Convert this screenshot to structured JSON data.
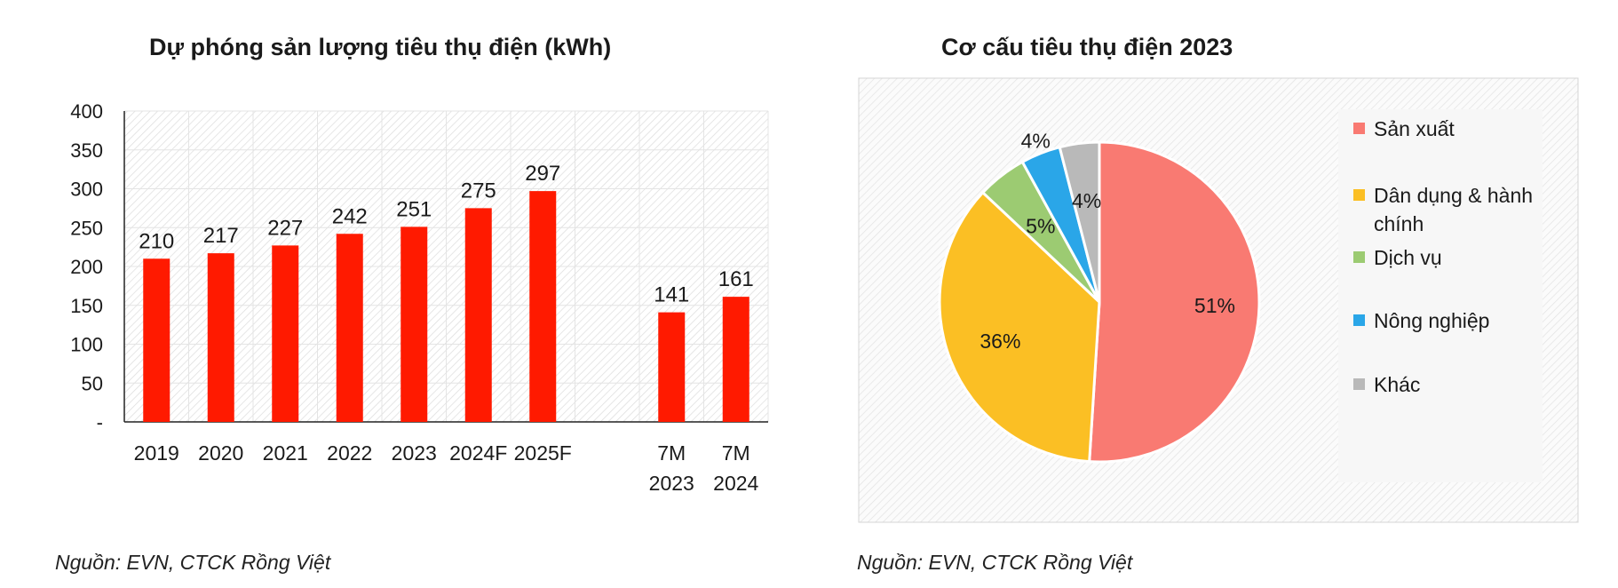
{
  "bar_panel": {
    "title": "Dự phóng sản lượng tiêu thụ điện (kWh)",
    "source": "Nguồn: EVN, CTCK Rồng Việt"
  },
  "pie_panel": {
    "title": "Cơ cấu tiêu thụ điện 2023",
    "source": "Nguồn: EVN, CTCK Rồng Việt"
  },
  "chart_data": [
    {
      "type": "bar",
      "title": "Dự phóng sản lượng tiêu thụ điện (kWh)",
      "xlabel": "",
      "ylabel": "",
      "ylim": [
        0,
        400
      ],
      "ytick_labels": [
        "-",
        "50",
        "100",
        "150",
        "200",
        "250",
        "300",
        "350",
        "400"
      ],
      "categories": [
        [
          "2019"
        ],
        [
          "2020"
        ],
        [
          "2021"
        ],
        [
          "2022"
        ],
        [
          "2023"
        ],
        [
          "2024F"
        ],
        [
          "2025F"
        ],
        [
          ""
        ],
        [
          "7M",
          "2023"
        ],
        [
          "7M",
          "2024"
        ]
      ],
      "values": [
        210,
        217,
        227,
        242,
        251,
        275,
        297,
        null,
        141,
        161
      ],
      "data_labels": [
        "210",
        "217",
        "227",
        "242",
        "251",
        "275",
        "297",
        "",
        "141",
        "161"
      ],
      "bar_color": "#ff1a00",
      "grid": true
    },
    {
      "type": "pie",
      "title": "Cơ cấu tiêu thụ điện 2023",
      "labels": [
        "Sản xuất",
        "Dân dụng & hành chính",
        "Dịch vụ",
        "Nông nghiệp",
        "Khác"
      ],
      "legend_lines": [
        [
          "Sản xuất"
        ],
        [
          "Dân dụng & hành",
          "chính"
        ],
        [
          "Dịch vụ"
        ],
        [
          "Nông nghiệp"
        ],
        [
          "Khác"
        ]
      ],
      "values": [
        51,
        36,
        5,
        4,
        4
      ],
      "data_labels": [
        "51%",
        "36%",
        "5%",
        "4%",
        "4%"
      ],
      "colors": [
        "#f97a72",
        "#fbbf24",
        "#9ccb72",
        "#2aa6e8",
        "#b9b9b9"
      ],
      "legend_position": "right"
    }
  ]
}
